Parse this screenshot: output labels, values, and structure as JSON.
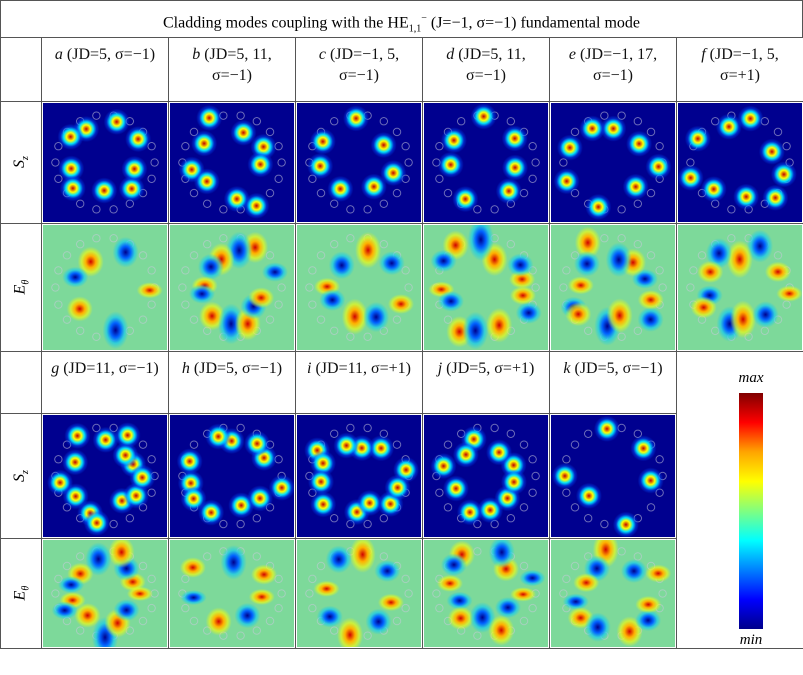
{
  "title": {
    "prefix": "Cladding modes coupling with the HE",
    "sub": "1,1",
    "sup": "−",
    "rest": " (J=−1, σ=−1) fundamental mode"
  },
  "row_labels": {
    "sz": {
      "main": "S",
      "sub": "z"
    },
    "etheta": {
      "main": "E",
      "sub": "θ"
    }
  },
  "panels_top": [
    {
      "letter": "a",
      "params": "(JD=5, σ=−1)"
    },
    {
      "letter": "b",
      "params": "(JD=5, 11, σ=−1)"
    },
    {
      "letter": "c",
      "params": "(JD=−1, 5, σ=−1)"
    },
    {
      "letter": "d",
      "params": "(JD=5, 11, σ=−1)"
    },
    {
      "letter": "e",
      "params": "(JD=−1, 17, σ=−1)"
    },
    {
      "letter": "f",
      "params": "(JD=−1, 5, σ=+1)"
    }
  ],
  "panels_bottom": [
    {
      "letter": "g",
      "params": "(JD=11, σ=−1)"
    },
    {
      "letter": "h",
      "params": "(JD=5, σ=−1)"
    },
    {
      "letter": "i",
      "params": "(JD=11, σ=+1)"
    },
    {
      "letter": "j",
      "params": "(JD=5, σ=+1)"
    },
    {
      "letter": "k",
      "params": "(JD=5, σ=−1)"
    }
  ],
  "colorbar": {
    "max": "max",
    "min": "min"
  }
}
